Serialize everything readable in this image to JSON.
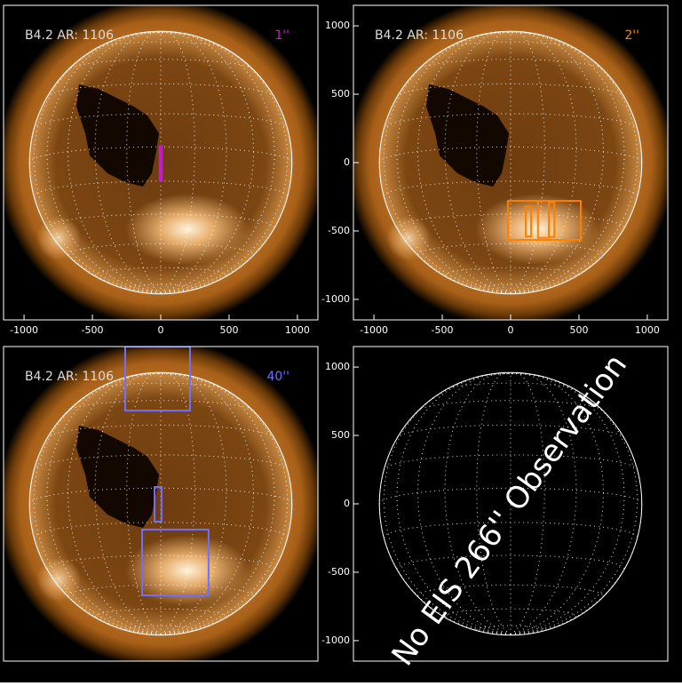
{
  "chart_data": [
    {
      "type": "image",
      "label": "B4.2 AR: 1106",
      "resolution": "1''",
      "color": "#c020c0",
      "xlim": [
        -1150,
        1150
      ],
      "ylim": [
        -1150,
        1150
      ],
      "xticks": [
        -1000,
        -500,
        0,
        500,
        1000
      ],
      "boxes": [
        {
          "x0": -5,
          "x1": 5,
          "y0": -130,
          "y1": 117
        }
      ]
    },
    {
      "type": "image",
      "label": "B4.2 AR: 1106",
      "resolution": "2''",
      "color": "#ff8000",
      "xlim": [
        -1150,
        1150
      ],
      "ylim": [
        -1150,
        1150
      ],
      "xticks": [
        -1000,
        -500,
        0,
        500,
        1000
      ],
      "yticks": [
        -1000,
        -500,
        0,
        500,
        1000
      ],
      "boxes": [
        {
          "x0": -20,
          "x1": 513,
          "y0": -565,
          "y1": -280
        },
        {
          "x0": 110,
          "x1": 150,
          "y0": -540,
          "y1": -320
        },
        {
          "x0": 200,
          "x1": 280,
          "y0": -550,
          "y1": -280
        },
        {
          "x0": 280,
          "x1": 320,
          "y0": -545,
          "y1": -290
        }
      ]
    },
    {
      "type": "image",
      "label": "B4.2 AR: 1106",
      "resolution": "40''",
      "color": "#7070ff",
      "xlim": [
        -1150,
        1150
      ],
      "ylim": [
        -1150,
        1150
      ],
      "boxes": [
        {
          "x0": -260,
          "x1": 214,
          "y0": 682,
          "y1": 1150
        },
        {
          "x0": -45,
          "x1": 6,
          "y0": -130,
          "y1": 123
        },
        {
          "x0": -136,
          "x1": 350,
          "y0": -669,
          "y1": -188
        }
      ]
    },
    {
      "type": "empty",
      "message": "No EIS 266'' Observation",
      "xlim": [
        -1150,
        1150
      ],
      "ylim": [
        -1150,
        1150
      ],
      "yticks": [
        -1000,
        -500,
        0,
        500,
        1000
      ]
    }
  ]
}
